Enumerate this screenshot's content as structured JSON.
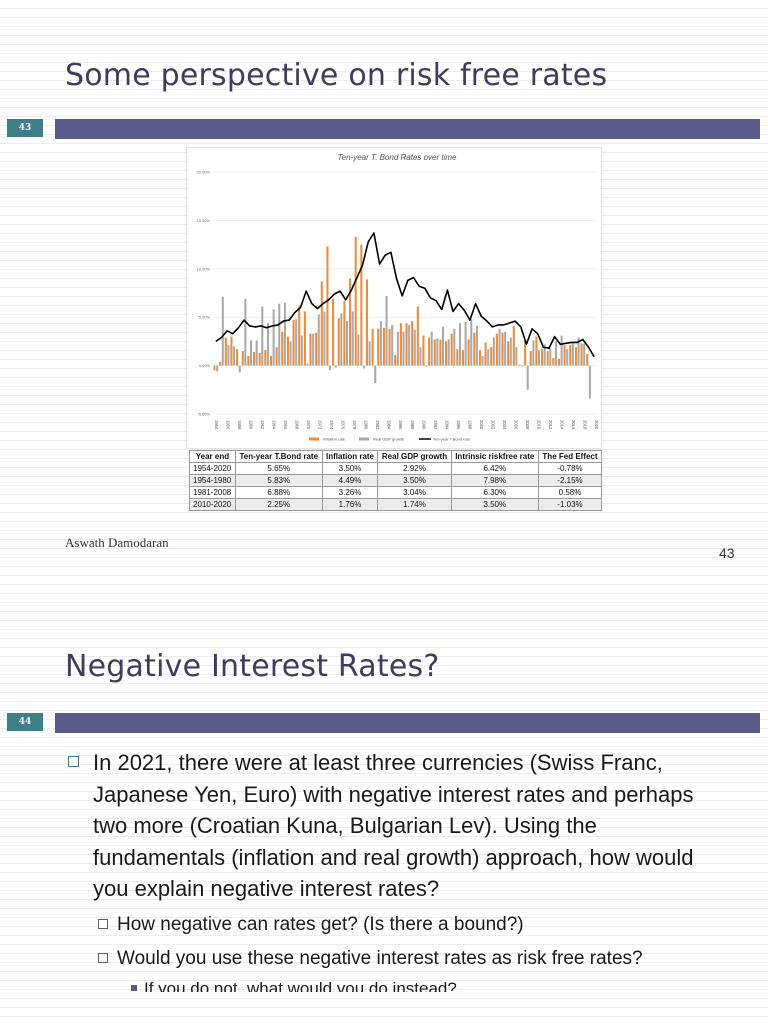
{
  "slide1": {
    "title": "Some perspective on risk free rates",
    "number_box": "43",
    "author": "Aswath Damodaran",
    "page_number": "43"
  },
  "chart_data": {
    "type": "bar",
    "title": "Ten-year T. Bond Rates over time",
    "ylim": [
      -5,
      20
    ],
    "y_ticks": [
      -5,
      0,
      5,
      10,
      15,
      20
    ],
    "y_tick_labels": [
      "-5.00%",
      "0.00%",
      "5.00%",
      "10.00%",
      "15.00%",
      "20.00%"
    ],
    "x_tick_labels": [
      "1954",
      "1956",
      "1958",
      "1960",
      "1962",
      "1964",
      "1966",
      "1968",
      "1970",
      "1972",
      "1974",
      "1976",
      "1978",
      "1980",
      "1982",
      "1984",
      "1986",
      "1988",
      "1990",
      "1992",
      "1994",
      "1996",
      "1998",
      "2000",
      "2002",
      "2004",
      "2006",
      "2008",
      "2010",
      "2012",
      "2014",
      "2016",
      "2018",
      "2020"
    ],
    "legend_position": "bottom",
    "series": [
      {
        "name": "Inflation rate",
        "kind": "bar",
        "color": "#ed8b3a",
        "values": [
          -0.5,
          0.4,
          2.9,
          3.0,
          1.7,
          1.5,
          1.0,
          1.4,
          1.3,
          1.6,
          1.0,
          1.9,
          3.5,
          3.0,
          4.7,
          6.2,
          5.6,
          3.3,
          3.4,
          8.7,
          12.3,
          6.9,
          4.9,
          6.7,
          9.0,
          13.3,
          12.5,
          8.9,
          3.8,
          3.8,
          3.9,
          3.8,
          1.1,
          4.4,
          4.4,
          4.6,
          6.1,
          3.1,
          2.9,
          2.7,
          2.7,
          2.5,
          3.3,
          1.7,
          1.6,
          2.7,
          3.4,
          1.6,
          2.4,
          1.9,
          3.3,
          3.4,
          2.5,
          4.1,
          0.1,
          2.7,
          1.5,
          3.0,
          1.7,
          1.5,
          0.8,
          0.7,
          2.1,
          2.1,
          1.9,
          2.3,
          1.2
        ]
      },
      {
        "name": "Real GDP growth",
        "kind": "bar",
        "color": "#a9a9a9",
        "values": [
          -0.6,
          7.1,
          2.1,
          2.0,
          -0.7,
          6.9,
          2.6,
          2.6,
          6.1,
          4.4,
          5.8,
          6.4,
          6.5,
          2.5,
          4.8,
          3.1,
          0.2,
          3.3,
          5.3,
          5.6,
          -0.5,
          -0.2,
          5.4,
          4.6,
          5.6,
          3.2,
          -0.3,
          2.5,
          -1.8,
          4.6,
          7.2,
          4.2,
          3.5,
          3.5,
          4.2,
          3.7,
          1.9,
          -0.1,
          3.5,
          2.8,
          4.0,
          2.7,
          3.8,
          4.4,
          4.5,
          4.8,
          4.1,
          1.0,
          1.7,
          2.9,
          3.8,
          3.5,
          2.9,
          1.9,
          -0.1,
          -2.5,
          2.6,
          1.6,
          2.2,
          1.8,
          2.5,
          3.1,
          1.7,
          2.3,
          2.9,
          2.3,
          -3.4
        ]
      },
      {
        "name": "Ten-year T.Bond rate",
        "kind": "line",
        "color": "#000000",
        "values": [
          2.5,
          2.9,
          3.6,
          3.3,
          3.9,
          4.7,
          4.1,
          4.0,
          4.1,
          3.9,
          4.1,
          4.2,
          4.6,
          4.7,
          5.5,
          6.0,
          7.7,
          6.4,
          5.9,
          6.4,
          6.8,
          7.4,
          7.7,
          6.8,
          7.8,
          9.1,
          10.4,
          12.8,
          13.7,
          10.5,
          11.4,
          11.7,
          9.0,
          7.2,
          8.8,
          9.1,
          8.2,
          8.0,
          7.0,
          6.7,
          5.8,
          7.8,
          5.6,
          6.4,
          5.7,
          4.7,
          6.4,
          5.1,
          4.6,
          4.0,
          4.2,
          4.2,
          4.4,
          4.6,
          4.0,
          2.2,
          3.8,
          3.3,
          1.9,
          1.8,
          3.0,
          2.2,
          2.3,
          2.4,
          2.4,
          2.7,
          1.9,
          0.9
        ]
      }
    ]
  },
  "table": {
    "headers": [
      "Year end",
      "Ten-year T.Bond rate",
      "Inflation rate",
      "Real GDP growth",
      "Intrinsic riskfree rate",
      "The Fed Effect"
    ],
    "rows": [
      [
        "1954-2020",
        "5.65%",
        "3.50%",
        "2.92%",
        "6.42%",
        "-0.78%"
      ],
      [
        "1954-1980",
        "5.83%",
        "4.49%",
        "3.50%",
        "7.98%",
        "-2.15%"
      ],
      [
        "1981-2008",
        "6.88%",
        "3.26%",
        "3.04%",
        "6.30%",
        "0.58%"
      ],
      [
        "2010-2020",
        "2.25%",
        "1.76%",
        "1.74%",
        "3.50%",
        "-1.03%"
      ]
    ]
  },
  "slide2": {
    "title": "Negative Interest Rates?",
    "number_box": "44",
    "bullet_main": "In 2021, there were at least three currencies (Swiss Franc, Japanese Yen, Euro) with negative interest rates and perhaps two more (Croatian Kuna, Bulgarian Lev). Using the fundamentals (inflation and real growth) approach, how would you explain negative interest rates?",
    "sub_bullets": [
      "How negative can rates get? (Is there a bound?)",
      "Would you use these negative interest rates as risk free rates?"
    ],
    "sub_sub_bullet": "If you do not, what would you do instead?"
  },
  "colors": {
    "title": "#3f3c5e",
    "number_box": "#3e7f87",
    "accent_bar": "#5b5b8b"
  }
}
